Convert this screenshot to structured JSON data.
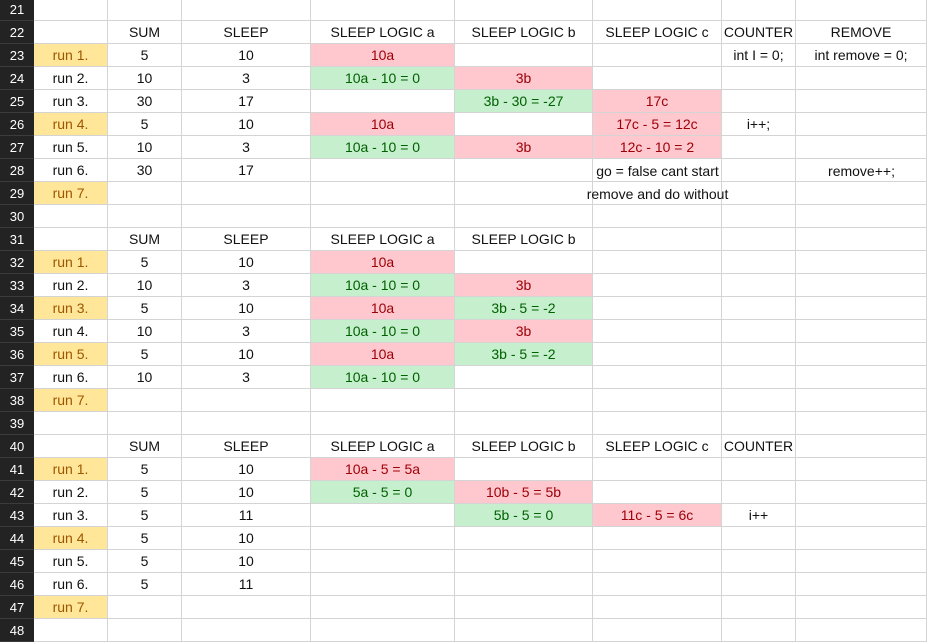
{
  "sheet": {
    "row_numbers": [
      "21",
      "22",
      "23",
      "24",
      "25",
      "26",
      "27",
      "28",
      "29",
      "30",
      "31",
      "32",
      "33",
      "34",
      "35",
      "36",
      "37",
      "38",
      "39",
      "40",
      "41",
      "42",
      "43",
      "44",
      "45",
      "46",
      "47",
      "48"
    ],
    "rows": [
      [
        "",
        "",
        "",
        "",
        "",
        "",
        "",
        ""
      ],
      [
        "",
        "SUM",
        "SLEEP",
        "SLEEP LOGIC a",
        "SLEEP LOGIC b",
        "SLEEP LOGIC c",
        "COUNTER",
        "REMOVE"
      ],
      [
        "run 1.",
        "5",
        "10",
        "10a",
        "",
        "",
        "int I = 0;",
        "int remove = 0;"
      ],
      [
        "run 2.",
        "10",
        "3",
        "10a - 10 = 0",
        "3b",
        "",
        "",
        ""
      ],
      [
        "run 3.",
        "30",
        "17",
        "",
        "3b - 30 = -27",
        "17c",
        "",
        ""
      ],
      [
        "run 4.",
        "5",
        "10",
        "10a",
        "",
        "17c - 5 = 12c",
        "i++;",
        ""
      ],
      [
        "run 5.",
        "10",
        "3",
        "10a - 10 = 0",
        "3b",
        "12c - 10 = 2",
        "",
        ""
      ],
      [
        "run 6.",
        "30",
        "17",
        "",
        "",
        "",
        "",
        ""
      ],
      [
        "run 7.",
        "",
        "",
        "",
        "",
        "",
        "",
        ""
      ],
      [
        "",
        "",
        "",
        "",
        "",
        "",
        "",
        ""
      ],
      [
        "",
        "SUM",
        "SLEEP",
        "SLEEP LOGIC a",
        "SLEEP LOGIC b",
        "",
        "",
        ""
      ],
      [
        "run 1.",
        "5",
        "10",
        "10a",
        "",
        "",
        "",
        ""
      ],
      [
        "run 2.",
        "10",
        "3",
        "10a - 10 = 0",
        "3b",
        "",
        "",
        ""
      ],
      [
        "run 3.",
        "5",
        "10",
        "10a",
        "3b - 5 = -2",
        "",
        "",
        ""
      ],
      [
        "run 4.",
        "10",
        "3",
        "10a - 10 = 0",
        "3b",
        "",
        "",
        ""
      ],
      [
        "run 5.",
        "5",
        "10",
        "10a",
        "3b - 5 = -2",
        "",
        "",
        ""
      ],
      [
        "run 6.",
        "10",
        "3",
        "10a - 10 = 0",
        "",
        "",
        "",
        ""
      ],
      [
        "run 7.",
        "",
        "",
        "",
        "",
        "",
        "",
        ""
      ],
      [
        "",
        "",
        "",
        "",
        "",
        "",
        "",
        ""
      ],
      [
        "",
        "SUM",
        "SLEEP",
        "SLEEP LOGIC a",
        "SLEEP LOGIC b",
        "SLEEP LOGIC c",
        "COUNTER",
        ""
      ],
      [
        "run 1.",
        "5",
        "10",
        "10a - 5 = 5a",
        "",
        "",
        "",
        ""
      ],
      [
        "run 2.",
        "5",
        "10",
        "5a - 5 = 0",
        "10b - 5 = 5b",
        "",
        "",
        ""
      ],
      [
        "run 3.",
        "5",
        "11",
        "",
        "5b - 5 = 0",
        "11c - 5 = 6c",
        "i++",
        ""
      ],
      [
        "run 4.",
        "5",
        "10",
        "",
        "",
        "",
        "",
        ""
      ],
      [
        "run 5.",
        "5",
        "10",
        "",
        "",
        "",
        "",
        ""
      ],
      [
        "run 6.",
        "5",
        "11",
        "",
        "",
        "",
        "",
        ""
      ],
      [
        "run 7.",
        "",
        "",
        "",
        "",
        "",
        "",
        ""
      ],
      [
        "",
        "",
        "",
        "",
        "",
        "",
        "",
        ""
      ]
    ],
    "fills": [
      [
        "",
        "",
        "",
        "",
        "",
        "",
        "",
        ""
      ],
      [
        "",
        "",
        "",
        "",
        "",
        "",
        "",
        ""
      ],
      [
        "yellow",
        "",
        "",
        "red",
        "",
        "",
        "",
        ""
      ],
      [
        "",
        "",
        "",
        "green",
        "red",
        "",
        "",
        ""
      ],
      [
        "",
        "",
        "",
        "",
        "green",
        "red",
        "",
        ""
      ],
      [
        "yellow",
        "",
        "",
        "red",
        "",
        "red",
        "",
        ""
      ],
      [
        "",
        "",
        "",
        "green",
        "red",
        "red",
        "",
        ""
      ],
      [
        "",
        "",
        "",
        "",
        "",
        "",
        "",
        ""
      ],
      [
        "yellow",
        "",
        "",
        "",
        "",
        "",
        "",
        ""
      ],
      [
        "",
        "",
        "",
        "",
        "",
        "",
        "",
        ""
      ],
      [
        "",
        "",
        "",
        "",
        "",
        "",
        "",
        ""
      ],
      [
        "yellow",
        "",
        "",
        "red",
        "",
        "",
        "",
        ""
      ],
      [
        "",
        "",
        "",
        "green",
        "red",
        "",
        "",
        ""
      ],
      [
        "yellow",
        "",
        "",
        "red",
        "green",
        "",
        "",
        ""
      ],
      [
        "",
        "",
        "",
        "green",
        "red",
        "",
        "",
        ""
      ],
      [
        "yellow",
        "",
        "",
        "red",
        "green",
        "",
        "",
        ""
      ],
      [
        "",
        "",
        "",
        "green",
        "",
        "",
        "",
        ""
      ],
      [
        "yellow",
        "",
        "",
        "",
        "",
        "",
        "",
        ""
      ],
      [
        "",
        "",
        "",
        "",
        "",
        "",
        "",
        ""
      ],
      [
        "",
        "",
        "",
        "",
        "",
        "",
        "",
        ""
      ],
      [
        "yellow",
        "",
        "",
        "red",
        "",
        "",
        "",
        ""
      ],
      [
        "",
        "",
        "",
        "green",
        "red",
        "",
        "",
        ""
      ],
      [
        "",
        "",
        "",
        "",
        "green",
        "red",
        "",
        ""
      ],
      [
        "yellow",
        "",
        "",
        "",
        "",
        "",
        "",
        ""
      ],
      [
        "",
        "",
        "",
        "",
        "",
        "",
        "",
        ""
      ],
      [
        "",
        "",
        "",
        "",
        "",
        "",
        "",
        ""
      ],
      [
        "yellow",
        "",
        "",
        "",
        "",
        "",
        "",
        ""
      ],
      [
        "",
        "",
        "",
        "",
        "",
        "",
        "",
        ""
      ]
    ],
    "notes": {
      "go_false": "go = false cant start",
      "remove_inc": "remove++;",
      "remove_without": "remove and do without"
    }
  },
  "colors": {
    "yellow_fill": "#ffe699",
    "red_fill": "#ffc7ce",
    "green_fill": "#c6efce",
    "row_header": "#232323"
  }
}
